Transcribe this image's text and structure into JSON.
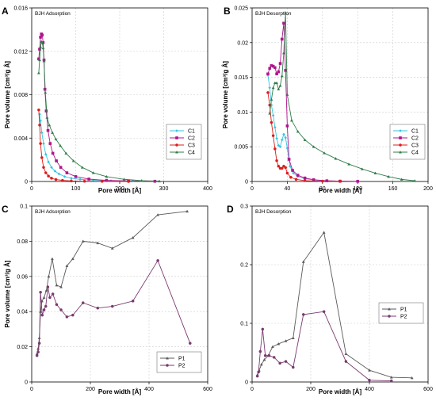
{
  "chart_data": [
    {
      "id": "A",
      "type": "line",
      "panel_letter": "A",
      "title": "BJH Adsorption",
      "xlabel": "Pore width [Å]",
      "ylabel": "Pore volume [cm³/g Å]",
      "xlim": [
        0,
        400
      ],
      "ylim": [
        0,
        0.016
      ],
      "xticks": [
        0,
        100,
        200,
        300,
        400
      ],
      "yticks": [
        0,
        0.004,
        0.008,
        0.012,
        0.016
      ],
      "xtick_labels": [
        "0",
        "100",
        "200",
        "300",
        "400"
      ],
      "ytick_labels": [
        "0",
        "0.004",
        "0.008",
        "0.012",
        "0.016"
      ],
      "grid": true,
      "legend": "center-right",
      "series": [
        {
          "name": "C1",
          "color": "#33c6e0",
          "marker": "diamond",
          "x": [
            18,
            20,
            23,
            27,
            32,
            38,
            45,
            53,
            62,
            75,
            90,
            110,
            140,
            180,
            230,
            280
          ],
          "y": [
            0.0062,
            0.0056,
            0.0045,
            0.0035,
            0.0025,
            0.0018,
            0.0013,
            0.00095,
            0.0007,
            0.00045,
            0.0003,
            0.0002,
            0.00012,
            7e-05,
            4e-05,
            2e-05
          ]
        },
        {
          "name": "C2",
          "color": "#b0148c",
          "marker": "square",
          "x": [
            16,
            18,
            20,
            22,
            24,
            26,
            28,
            30,
            33,
            37,
            42,
            48,
            56,
            66,
            80,
            100,
            130,
            170,
            220,
            280
          ],
          "y": [
            0.0113,
            0.0122,
            0.0133,
            0.0136,
            0.0135,
            0.0128,
            0.0112,
            0.0085,
            0.0065,
            0.0047,
            0.0035,
            0.0026,
            0.0019,
            0.0013,
            0.0008,
            0.00045,
            0.00022,
            0.0001,
            5e-05,
            2e-05
          ]
        },
        {
          "name": "C3",
          "color": "#dd1c1c",
          "marker": "circle",
          "x": [
            16,
            18,
            20,
            23,
            27,
            32,
            38,
            45,
            55,
            70,
            90,
            120,
            160,
            220
          ],
          "y": [
            0.0066,
            0.0052,
            0.0035,
            0.0022,
            0.0013,
            0.0008,
            0.0005,
            0.0003,
            0.00018,
            0.0001,
            5e-05,
            2e-05,
            1e-05,
            0.0
          ],
          "pre_x": [],
          "pre_y": []
        },
        {
          "name": "C4",
          "color": "#2f7d4a",
          "marker": "triangle",
          "x": [
            16,
            18,
            20,
            22,
            24,
            26,
            28,
            31,
            35,
            40,
            47,
            55,
            65,
            78,
            95,
            115,
            140,
            170,
            210,
            250,
            290
          ],
          "y": [
            0.01,
            0.0112,
            0.0124,
            0.0129,
            0.0128,
            0.0123,
            0.0111,
            0.0082,
            0.0059,
            0.0052,
            0.0045,
            0.0039,
            0.0033,
            0.0026,
            0.0019,
            0.0013,
            0.0008,
            0.00045,
            0.0002,
            8e-05,
            3e-05
          ]
        }
      ]
    },
    {
      "id": "B",
      "type": "line",
      "panel_letter": "B",
      "title": "BJH Desorption",
      "xlabel": "Pore width [Å]",
      "ylabel": "Pore volume [cm³/g Å]",
      "xlim": [
        0,
        200
      ],
      "ylim": [
        0,
        0.025
      ],
      "xticks": [
        0,
        40,
        80,
        120,
        160,
        200
      ],
      "yticks": [
        0,
        0.005,
        0.01,
        0.015,
        0.02,
        0.025
      ],
      "xtick_labels": [
        "0",
        "40",
        "80",
        "120",
        "160",
        "200"
      ],
      "ytick_labels": [
        "0",
        "0.005",
        "0.01",
        "0.015",
        "0.02",
        "0.025"
      ],
      "grid": true,
      "legend": "center-right",
      "series": [
        {
          "name": "C1",
          "color": "#33c6e0",
          "marker": "diamond",
          "x": [
            18,
            20,
            22,
            24,
            26,
            28,
            30,
            32,
            34,
            36,
            38,
            40,
            43,
            47,
            52,
            60,
            70,
            85,
            100,
            120
          ],
          "y": [
            0.0153,
            0.0135,
            0.011,
            0.0095,
            0.0078,
            0.0062,
            0.0052,
            0.005,
            0.006,
            0.0068,
            0.0063,
            0.0048,
            0.0022,
            0.0012,
            0.0007,
            0.0004,
            0.00022,
            0.0001,
            5e-05,
            2e-05
          ]
        },
        {
          "name": "C2",
          "color": "#b0148c",
          "marker": "square",
          "x": [
            18,
            20,
            22,
            24,
            26,
            28,
            30,
            32,
            34,
            36,
            38,
            40,
            42,
            46,
            52,
            60,
            70,
            85,
            100,
            120
          ],
          "y": [
            0.0155,
            0.0163,
            0.0167,
            0.0166,
            0.0164,
            0.0155,
            0.0158,
            0.017,
            0.0205,
            0.0228,
            0.016,
            0.008,
            0.0032,
            0.0016,
            0.0009,
            0.0005,
            0.00025,
            0.0001,
            5e-05,
            2e-05
          ]
        },
        {
          "name": "C3",
          "color": "#dd1c1c",
          "marker": "circle",
          "x": [
            18,
            20,
            22,
            24,
            26,
            28,
            30,
            32,
            34,
            36,
            38,
            40,
            44,
            50,
            60,
            80,
            100
          ],
          "y": [
            0.0128,
            0.011,
            0.0085,
            0.0066,
            0.0047,
            0.003,
            0.0022,
            0.0019,
            0.0019,
            0.0022,
            0.002,
            0.0012,
            0.0006,
            0.0003,
            0.00012,
            4e-05,
            1e-05
          ]
        },
        {
          "name": "C4",
          "color": "#2f7d4a",
          "marker": "triangle",
          "x": [
            20,
            22,
            24,
            26,
            28,
            30,
            32,
            34,
            36,
            38,
            40,
            45,
            52,
            60,
            70,
            82,
            95,
            110,
            125,
            140,
            155,
            170,
            185
          ],
          "y": [
            0.0098,
            0.0118,
            0.0135,
            0.0142,
            0.0142,
            0.0133,
            0.0138,
            0.0152,
            0.0185,
            0.0243,
            0.0125,
            0.0088,
            0.0072,
            0.006,
            0.005,
            0.0041,
            0.0033,
            0.0025,
            0.0018,
            0.0012,
            0.0007,
            0.0003,
            0.0001
          ]
        }
      ]
    },
    {
      "id": "C",
      "type": "line",
      "panel_letter": "C",
      "title": "BJH Adsorption",
      "xlabel": "Pore width [Å]",
      "ylabel": "Pore volume [cm³/g Å]",
      "xlim": [
        0,
        600
      ],
      "ylim": [
        0,
        0.1
      ],
      "xticks": [
        0,
        200,
        400,
        600
      ],
      "yticks": [
        0,
        0.02,
        0.04,
        0.06,
        0.08,
        0.1
      ],
      "xtick_labels": [
        "0",
        "200",
        "400",
        "600"
      ],
      "ytick_labels": [
        "0",
        "0.02",
        "0.04",
        "0.06",
        "0.08",
        "0.1"
      ],
      "grid": true,
      "legend": "bottom-right",
      "series": [
        {
          "name": "P1",
          "color": "#5a5a5a",
          "marker": "triangle",
          "x": [
            18,
            22,
            26,
            30,
            35,
            42,
            50,
            58,
            70,
            85,
            100,
            120,
            140,
            175,
            225,
            275,
            345,
            430,
            530
          ],
          "y": [
            0.016,
            0.019,
            0.025,
            0.04,
            0.046,
            0.048,
            0.052,
            0.06,
            0.07,
            0.055,
            0.054,
            0.066,
            0.07,
            0.08,
            0.079,
            0.076,
            0.082,
            0.095,
            0.097
          ]
        },
        {
          "name": "P2",
          "color": "#7a3a70",
          "marker": "circle",
          "x": [
            18,
            22,
            26,
            30,
            36,
            42,
            48,
            55,
            62,
            72,
            85,
            100,
            120,
            140,
            175,
            225,
            275,
            345,
            430,
            540
          ],
          "y": [
            0.015,
            0.017,
            0.022,
            0.051,
            0.038,
            0.041,
            0.043,
            0.054,
            0.048,
            0.05,
            0.044,
            0.041,
            0.037,
            0.038,
            0.045,
            0.042,
            0.043,
            0.046,
            0.069,
            0.022
          ]
        }
      ]
    },
    {
      "id": "D",
      "type": "line",
      "panel_letter": "D",
      "title": "BJH Desorption",
      "xlabel": "Pore width [Å]",
      "ylabel": "",
      "xlim": [
        0,
        600
      ],
      "ylim": [
        0,
        0.3
      ],
      "xticks": [
        0,
        200,
        400,
        600
      ],
      "yticks": [
        0,
        0.1,
        0.2,
        0.3
      ],
      "xtick_labels": [
        "0",
        "200",
        "400",
        "600"
      ],
      "ytick_labels": [
        "0",
        "0.1",
        "0.2",
        "0.3"
      ],
      "grid": true,
      "legend": "center-right",
      "series": [
        {
          "name": "P1",
          "color": "#5a5a5a",
          "marker": "triangle",
          "x": [
            18,
            24,
            32,
            42,
            55,
            70,
            90,
            115,
            140,
            175,
            245,
            320,
            400,
            475,
            545
          ],
          "y": [
            0.012,
            0.02,
            0.03,
            0.038,
            0.045,
            0.06,
            0.065,
            0.07,
            0.075,
            0.205,
            0.255,
            0.048,
            0.02,
            0.008,
            0.007
          ]
        },
        {
          "name": "P2",
          "color": "#7a3a70",
          "marker": "circle",
          "x": [
            18,
            22,
            28,
            36,
            45,
            58,
            75,
            95,
            115,
            140,
            175,
            245,
            320,
            400,
            475
          ],
          "y": [
            0.01,
            0.017,
            0.052,
            0.09,
            0.045,
            0.045,
            0.042,
            0.032,
            0.035,
            0.025,
            0.115,
            0.12,
            0.035,
            0.003,
            0.002
          ]
        }
      ]
    }
  ]
}
